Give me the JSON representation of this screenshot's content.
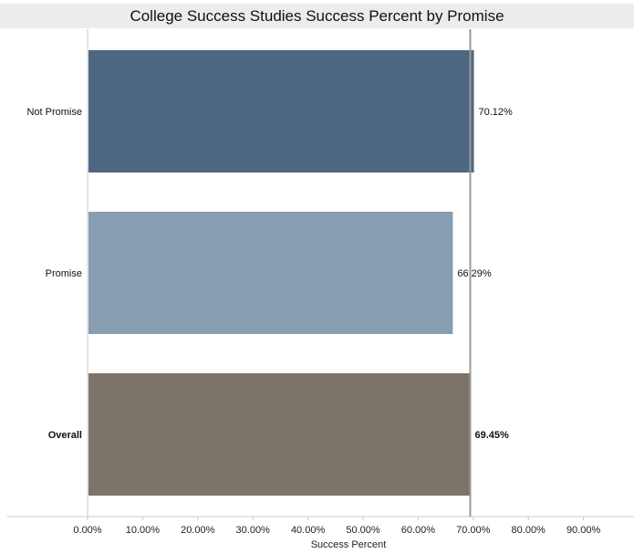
{
  "title": "College Success Studies Success Percent by Promise",
  "chart_data": {
    "type": "bar",
    "orientation": "horizontal",
    "title": "College Success Studies Success Percent by Promise",
    "xlabel": "Success Percent",
    "ylabel": "",
    "xlim": [
      0,
      90
    ],
    "x_ticks": [
      "0.00%",
      "10.00%",
      "20.00%",
      "30.00%",
      "40.00%",
      "50.00%",
      "60.00%",
      "70.00%",
      "80.00%",
      "90.00%"
    ],
    "reference_line": 69.45,
    "grid": false,
    "categories": [
      "Not Promise",
      "Promise",
      "Overall"
    ],
    "values": [
      70.12,
      66.29,
      69.45
    ],
    "value_labels": [
      "70.12%",
      "66.29%",
      "69.45%"
    ],
    "colors": [
      "#4e6780",
      "#879db2",
      "#7c736a"
    ],
    "bold_categories": [
      "Overall"
    ]
  }
}
